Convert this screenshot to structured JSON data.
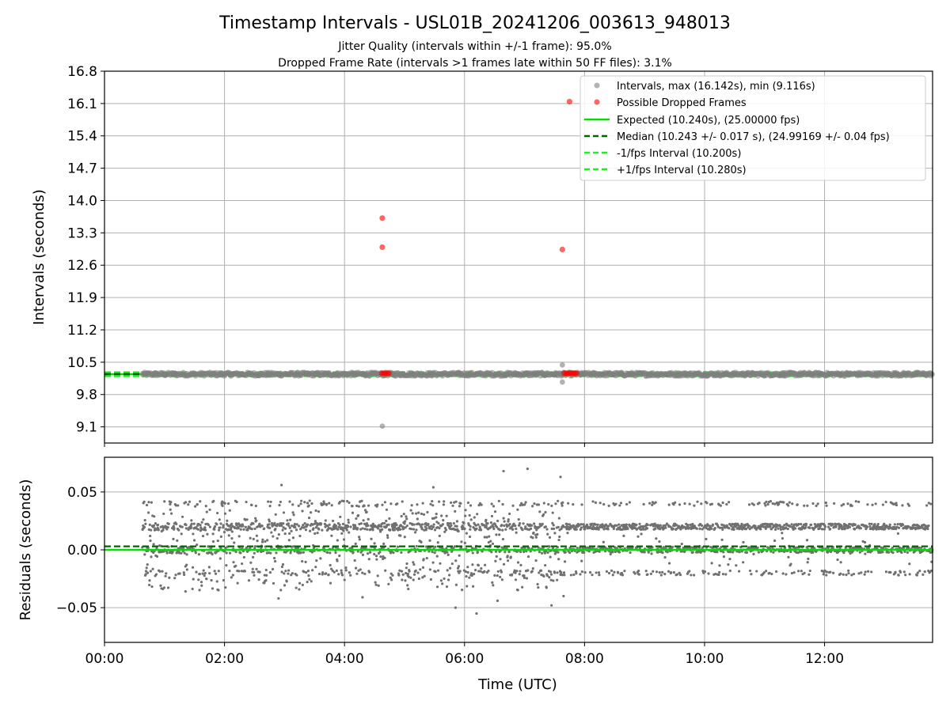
{
  "title": "Timestamp Intervals - USL01B_20241206_003613_948013",
  "subtitle_1": "Jitter Quality (intervals within +/-1 frame): 95.0%",
  "subtitle_2": "Dropped Frame Rate (intervals >1 frames late within 50 FF files): 3.1%",
  "colors": {
    "intervals": "#808080",
    "dropped": "#ff0000",
    "expected": "#00e000",
    "median": "#006400",
    "fps_band": "#22ee22",
    "residuals": "#707070",
    "grid": "#b0b0b0"
  },
  "chart_data": [
    {
      "type": "scatter",
      "ylabel": "Intervals (seconds)",
      "xlim_hours": [
        0.0,
        13.8
      ],
      "ylim": [
        8.75,
        16.8
      ],
      "yticks": [
        9.1,
        9.8,
        10.5,
        11.2,
        11.9,
        12.6,
        13.3,
        14.0,
        14.7,
        15.4,
        16.1,
        16.8
      ],
      "ytick_labels": [
        "9.1",
        "9.8",
        "10.5",
        "11.2",
        "11.9",
        "12.6",
        "13.3",
        "14.0",
        "14.7",
        "15.4",
        "16.1",
        "16.8"
      ],
      "grid": true,
      "legend_position": "top-right",
      "legend": [
        "Intervals, max (16.142s), min (9.116s)",
        "Possible Dropped Frames",
        "Expected (10.240s), (25.00000 fps)",
        "Median (10.243 +/- 0.017 s), (24.99169 +/- 0.04 fps)",
        "-1/fps Interval (10.200s)",
        "+1/fps Interval (10.280s)"
      ],
      "series": [
        {
          "name": "Intervals, max (16.142s), min (9.116s)",
          "time_range_hours": [
            0.63,
            13.8
          ],
          "typical_value": 10.24,
          "outliers": [
            {
              "x": 4.63,
              "y": 9.116
            },
            {
              "x": 7.63,
              "y": 10.44
            },
            {
              "x": 7.63,
              "y": 10.07
            }
          ]
        },
        {
          "name": "Possible Dropped Frames",
          "points": [
            {
              "x": 4.63,
              "y": 13.62
            },
            {
              "x": 4.63,
              "y": 12.99
            },
            {
              "x": 7.63,
              "y": 12.94
            },
            {
              "x": 7.75,
              "y": 16.142
            },
            {
              "x": 4.62,
              "y": 10.26
            },
            {
              "x": 4.65,
              "y": 10.26
            },
            {
              "x": 4.68,
              "y": 10.26
            },
            {
              "x": 4.71,
              "y": 10.26
            },
            {
              "x": 4.74,
              "y": 10.26
            },
            {
              "x": 7.66,
              "y": 10.26
            },
            {
              "x": 7.69,
              "y": 10.26
            },
            {
              "x": 7.72,
              "y": 10.26
            },
            {
              "x": 7.75,
              "y": 10.26
            },
            {
              "x": 7.78,
              "y": 10.26
            },
            {
              "x": 7.81,
              "y": 10.26
            },
            {
              "x": 7.84,
              "y": 10.26
            },
            {
              "x": 7.87,
              "y": 10.26
            }
          ]
        },
        {
          "name": "Expected (10.240s), (25.00000 fps)",
          "value": 10.24
        },
        {
          "name": "Median (10.243 +/- 0.017 s), (24.99169 +/- 0.04 fps)",
          "value": 10.243
        },
        {
          "name": "-1/fps Interval (10.200s)",
          "value": 10.2
        },
        {
          "name": "+1/fps Interval (10.280s)",
          "value": 10.28
        }
      ]
    },
    {
      "type": "scatter",
      "xlabel": "Time (UTC)",
      "ylabel": "Residuals (seconds)",
      "xlim_hours": [
        0.0,
        13.8
      ],
      "ylim": [
        -0.08,
        0.08
      ],
      "yticks": [
        -0.05,
        0.0,
        0.05
      ],
      "ytick_labels": [
        "−0.05",
        "0.00",
        "0.05"
      ],
      "xticks_hours": [
        0,
        2,
        4,
        6,
        8,
        10,
        12
      ],
      "xtick_labels": [
        "00:00",
        "02:00",
        "04:00",
        "06:00",
        "08:00",
        "10:00",
        "12:00"
      ],
      "grid": true,
      "series": [
        {
          "time_range_hours": [
            0.63,
            13.8
          ],
          "residual_bands": [
            -0.02,
            0.0,
            0.02,
            0.04
          ],
          "spread_before_hours": 7.6,
          "extremes": [
            {
              "x": 7.05,
              "y": 0.07
            },
            {
              "x": 6.65,
              "y": 0.068
            },
            {
              "x": 7.6,
              "y": 0.063
            },
            {
              "x": 2.95,
              "y": 0.056
            },
            {
              "x": 5.48,
              "y": 0.054
            },
            {
              "x": 6.2,
              "y": -0.055
            },
            {
              "x": 5.85,
              "y": -0.05
            },
            {
              "x": 7.45,
              "y": -0.048
            },
            {
              "x": 2.9,
              "y": -0.042
            },
            {
              "x": 4.3,
              "y": -0.041
            },
            {
              "x": 6.55,
              "y": -0.044
            },
            {
              "x": 1.35,
              "y": -0.036
            },
            {
              "x": 7.65,
              "y": -0.04
            }
          ]
        },
        {
          "name": "Expected",
          "value": 0.0
        },
        {
          "name": "Median",
          "value": 0.003
        }
      ]
    }
  ]
}
